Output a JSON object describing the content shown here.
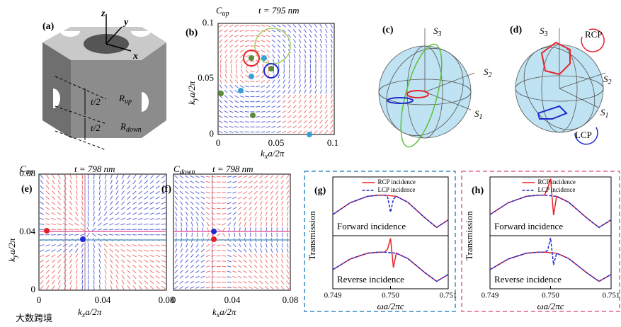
{
  "panels": {
    "a": {
      "label": "(a)",
      "axes": [
        "z",
        "y",
        "x"
      ],
      "halves": [
        "t/2",
        "t/2"
      ],
      "r_up": {
        "main": "R",
        "sub": "up"
      },
      "r_down": {
        "main": "R",
        "sub": "down"
      }
    },
    "b": {
      "label": "(b)",
      "title": {
        "main": "C",
        "sub": "up"
      },
      "thickness": "t = 795 nm",
      "xticks": [
        "0",
        "0.05",
        "0.1"
      ],
      "yticks": [
        "0",
        "0.05",
        "0.1"
      ],
      "xlabel": {
        "main": "k",
        "sub": "x",
        "post": "a/2π"
      },
      "ylabel": {
        "main": "k",
        "sub": "y",
        "post": "a/2π"
      }
    },
    "c": {
      "label": "(c)",
      "stokes": [
        {
          "main": "S",
          "sub": "3"
        },
        {
          "main": "S",
          "sub": "2"
        },
        {
          "main": "S",
          "sub": "1"
        }
      ]
    },
    "d": {
      "label": "(d)",
      "stokes": [
        {
          "main": "S",
          "sub": "3"
        },
        {
          "main": "S",
          "sub": "2"
        },
        {
          "main": "S",
          "sub": "1"
        }
      ],
      "rcp": "RCP",
      "lcp": "LCP"
    },
    "e": {
      "label": "(e)",
      "title": {
        "main": "C",
        "sub": "up"
      },
      "thickness": "t = 798 nm",
      "xticks": [
        "0",
        "0.04",
        "0.08"
      ],
      "yticks": [
        "0",
        "0.04",
        "0.08"
      ],
      "xlabel": {
        "main": "k",
        "sub": "x",
        "post": "a/2π"
      },
      "ylabel": {
        "main": "k",
        "sub": "y",
        "post": "a/2π"
      }
    },
    "f": {
      "label": "(f)",
      "title": {
        "main": "C",
        "sub": "down"
      },
      "thickness": "t = 798 nm",
      "xticks": [
        "0",
        "0.04",
        "0.08"
      ],
      "xlabel": {
        "main": "k",
        "sub": "x",
        "post": "a/2π"
      }
    }
  },
  "watermark": "大数跨境",
  "chart_data": [
    {
      "type": "line",
      "panel_label": "(g)",
      "ylabel": "Transmission",
      "annotation": "Forward incidence",
      "legend": "upper center",
      "x": [
        0.749,
        0.7493,
        0.7496,
        0.7498,
        0.7499,
        0.74995,
        0.75,
        0.75005,
        0.7501,
        0.7503,
        0.7506,
        0.7508,
        0.751
      ],
      "xlim": [
        0.749,
        0.751
      ],
      "ylim": [
        0,
        1
      ],
      "series": [
        {
          "name": "RCP incidence",
          "color": "#e8222a",
          "style": "solid",
          "values": [
            0.36,
            0.56,
            0.67,
            0.69,
            0.69,
            0.685,
            0.68,
            0.675,
            0.67,
            0.57,
            0.3,
            0.14,
            0.27
          ]
        },
        {
          "name": "LCP incidence",
          "color": "#1f2bd0",
          "style": "dashed",
          "values": [
            0.36,
            0.56,
            0.67,
            0.69,
            0.69,
            0.66,
            0.4,
            0.62,
            0.67,
            0.57,
            0.3,
            0.14,
            0.27
          ]
        }
      ]
    },
    {
      "type": "line",
      "annotation": "Reverse incidence",
      "xlabel": "ωa/2πc",
      "x": [
        0.749,
        0.7493,
        0.7496,
        0.7498,
        0.7499,
        0.74995,
        0.75,
        0.75005,
        0.7501,
        0.7503,
        0.7506,
        0.7508,
        0.751
      ],
      "xlim": [
        0.749,
        0.751
      ],
      "ylim": [
        0,
        1
      ],
      "xticks": [
        0.749,
        {
          "value": 0.75,
          "label": "0.750"
        },
        0.751
      ],
      "series": [
        {
          "color": "#e8222a",
          "style": "solid",
          "values": [
            0.36,
            0.56,
            0.67,
            0.69,
            0.69,
            0.75,
            0.95,
            0.4,
            0.67,
            0.57,
            0.3,
            0.14,
            0.27
          ]
        },
        {
          "color": "#1f2bd0",
          "style": "dashed",
          "values": [
            0.36,
            0.56,
            0.67,
            0.69,
            0.69,
            0.685,
            0.68,
            0.675,
            0.67,
            0.57,
            0.3,
            0.14,
            0.27
          ]
        }
      ]
    },
    {
      "type": "line",
      "panel_label": "(h)",
      "ylabel": "Transmission",
      "annotation": "Forward incidence",
      "legend": "upper center",
      "x": [
        0.749,
        0.7493,
        0.7496,
        0.7498,
        0.7499,
        0.74995,
        0.75,
        0.75005,
        0.7501,
        0.7503,
        0.7506,
        0.7508,
        0.751
      ],
      "xlim": [
        0.749,
        0.751
      ],
      "ylim": [
        0,
        1
      ],
      "series": [
        {
          "name": "RCP incidence",
          "color": "#e8222a",
          "style": "solid",
          "values": [
            0.36,
            0.56,
            0.67,
            0.69,
            0.69,
            0.8,
            0.97,
            0.35,
            0.67,
            0.57,
            0.3,
            0.14,
            0.27
          ]
        },
        {
          "name": "LCP incidence",
          "color": "#1f2bd0",
          "style": "dashed",
          "values": [
            0.36,
            0.56,
            0.67,
            0.69,
            0.69,
            0.685,
            0.68,
            0.675,
            0.67,
            0.57,
            0.3,
            0.14,
            0.27
          ]
        }
      ]
    },
    {
      "type": "line",
      "annotation": "Reverse incidence",
      "xlabel": "ωa/2πc",
      "x": [
        0.749,
        0.7493,
        0.7496,
        0.7498,
        0.7499,
        0.74995,
        0.75,
        0.75005,
        0.7501,
        0.7503,
        0.7506,
        0.7508,
        0.751
      ],
      "xlim": [
        0.749,
        0.751
      ],
      "ylim": [
        0,
        1
      ],
      "xticks": [
        0.749,
        {
          "value": 0.75,
          "label": "0.750"
        },
        0.751
      ],
      "series": [
        {
          "color": "#e8222a",
          "style": "solid",
          "values": [
            0.36,
            0.56,
            0.67,
            0.69,
            0.69,
            0.685,
            0.68,
            0.675,
            0.67,
            0.57,
            0.3,
            0.14,
            0.27
          ]
        },
        {
          "color": "#1f2bd0",
          "style": "dashed",
          "values": [
            0.36,
            0.56,
            0.67,
            0.69,
            0.69,
            0.72,
            0.96,
            0.45,
            0.67,
            0.57,
            0.3,
            0.14,
            0.27
          ]
        }
      ]
    }
  ]
}
